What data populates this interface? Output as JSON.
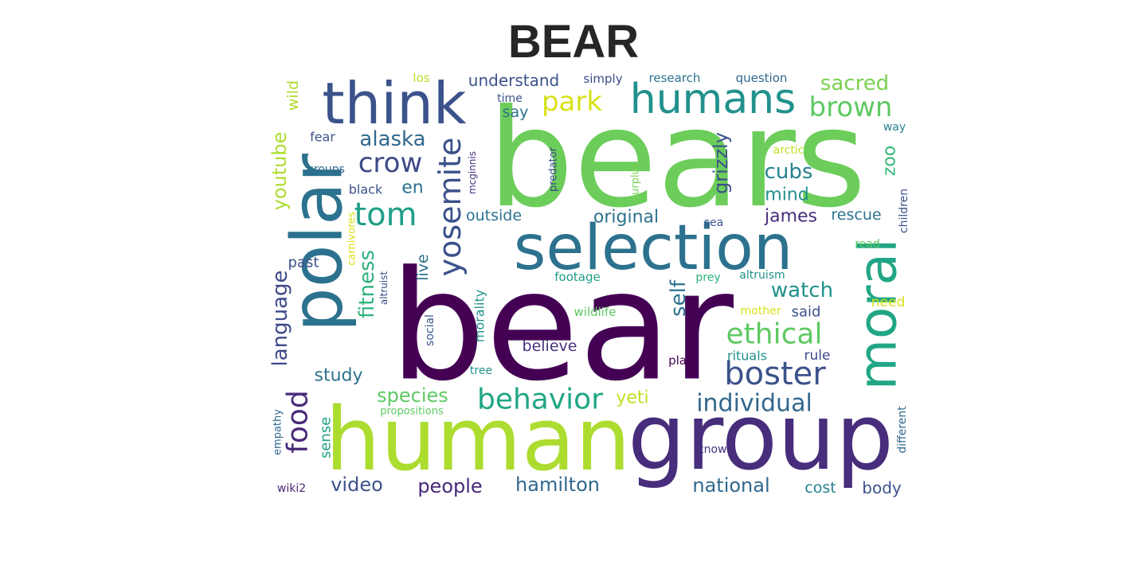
{
  "title": "BEAR",
  "words": [
    {
      "text": "bear",
      "color": "#440154"
    },
    {
      "text": "bears",
      "color": "#6ccd5a"
    },
    {
      "text": "human",
      "color": "#addc30"
    },
    {
      "text": "group",
      "color": "#472d7b"
    },
    {
      "text": "selection",
      "color": "#2c728e"
    },
    {
      "text": "polar",
      "color": "#2c728e"
    },
    {
      "text": "think",
      "color": "#3b528b"
    },
    {
      "text": "moral",
      "color": "#21a685"
    },
    {
      "text": "humans",
      "color": "#21918c"
    },
    {
      "text": "boster",
      "color": "#3b528b"
    },
    {
      "text": "ethical",
      "color": "#5ec962"
    },
    {
      "text": "behavior",
      "color": "#21a685"
    },
    {
      "text": "tom",
      "color": "#1f9e89"
    },
    {
      "text": "yosemite",
      "color": "#3b528b"
    },
    {
      "text": "brown",
      "color": "#5ec962"
    },
    {
      "text": "crow",
      "color": "#3e4989"
    },
    {
      "text": "park",
      "color": "#d8e219"
    },
    {
      "text": "food",
      "color": "#482878"
    },
    {
      "text": "language",
      "color": "#3e4989"
    },
    {
      "text": "youtube",
      "color": "#addc30"
    },
    {
      "text": "individual",
      "color": "#31688e"
    },
    {
      "text": "sacred",
      "color": "#7ad151"
    },
    {
      "text": "alaska",
      "color": "#31688e"
    },
    {
      "text": "fitness",
      "color": "#2db27d"
    },
    {
      "text": "self",
      "color": "#2c728e"
    },
    {
      "text": "watch",
      "color": "#21918c"
    },
    {
      "text": "cubs",
      "color": "#26828e"
    },
    {
      "text": "grizzly",
      "color": "#3b528b"
    },
    {
      "text": "species",
      "color": "#5ec962"
    },
    {
      "text": "video",
      "color": "#3b528b"
    },
    {
      "text": "people",
      "color": "#482878"
    },
    {
      "text": "hamilton",
      "color": "#31688e"
    },
    {
      "text": "national",
      "color": "#31688e"
    },
    {
      "text": "original",
      "color": "#2c728e"
    },
    {
      "text": "understand",
      "color": "#3b528b"
    },
    {
      "text": "james",
      "color": "#472d7b"
    },
    {
      "text": "mind",
      "color": "#21918c"
    },
    {
      "text": "study",
      "color": "#2c728e"
    },
    {
      "text": "yeti",
      "color": "#c2df23"
    },
    {
      "text": "outside",
      "color": "#2c728e"
    },
    {
      "text": "zoo",
      "color": "#35b779"
    },
    {
      "text": "rescue",
      "color": "#2c728e"
    },
    {
      "text": "en",
      "color": "#2c728e"
    },
    {
      "text": "say",
      "color": "#2c728e"
    },
    {
      "text": "wild",
      "color": "#addc30"
    },
    {
      "text": "live",
      "color": "#2c728e"
    },
    {
      "text": "believe",
      "color": "#46327e"
    },
    {
      "text": "said",
      "color": "#3b528b"
    },
    {
      "text": "cost",
      "color": "#26828e"
    },
    {
      "text": "body",
      "color": "#3b528b"
    },
    {
      "text": "past",
      "color": "#3b528b"
    },
    {
      "text": "sense",
      "color": "#1f9e89"
    },
    {
      "text": "morality",
      "color": "#21918c"
    },
    {
      "text": "need",
      "color": "#d8e219"
    },
    {
      "text": "rituals",
      "color": "#21918c"
    },
    {
      "text": "rule",
      "color": "#3e4989"
    },
    {
      "text": "fear",
      "color": "#3b528b"
    },
    {
      "text": "black",
      "color": "#3b528b"
    },
    {
      "text": "groups",
      "color": "#31688e"
    },
    {
      "text": "time",
      "color": "#3b528b"
    },
    {
      "text": "simply",
      "color": "#3e4989"
    },
    {
      "text": "research",
      "color": "#2c728e"
    },
    {
      "text": "question",
      "color": "#31688e"
    },
    {
      "text": "los",
      "color": "#b5de2b"
    },
    {
      "text": "way",
      "color": "#26828e"
    },
    {
      "text": "arctic",
      "color": "#c2df23"
    },
    {
      "text": "sea",
      "color": "#3b528b"
    },
    {
      "text": "read",
      "color": "#5ec962"
    },
    {
      "text": "children",
      "color": "#3b528b"
    },
    {
      "text": "footage",
      "color": "#1f9e89"
    },
    {
      "text": "prey",
      "color": "#2db27d"
    },
    {
      "text": "altruism",
      "color": "#21918c"
    },
    {
      "text": "wildlife",
      "color": "#5ec962"
    },
    {
      "text": "mother",
      "color": "#d8e219"
    },
    {
      "text": "play",
      "color": "#440154"
    },
    {
      "text": "tree",
      "color": "#21918c"
    },
    {
      "text": "social",
      "color": "#3b528b"
    },
    {
      "text": "altruist",
      "color": "#3e4989"
    },
    {
      "text": "carnivores",
      "color": "#d8e219"
    },
    {
      "text": "predator",
      "color": "#3e4989"
    },
    {
      "text": "surplus",
      "color": "#7ad151"
    },
    {
      "text": "mcginnis",
      "color": "#472d7b"
    },
    {
      "text": "empathy",
      "color": "#31688e"
    },
    {
      "text": "propositions",
      "color": "#5ec962"
    },
    {
      "text": "wiki2",
      "color": "#482878"
    },
    {
      "text": "know",
      "color": "#46327e"
    },
    {
      "text": "different",
      "color": "#31688e"
    }
  ]
}
